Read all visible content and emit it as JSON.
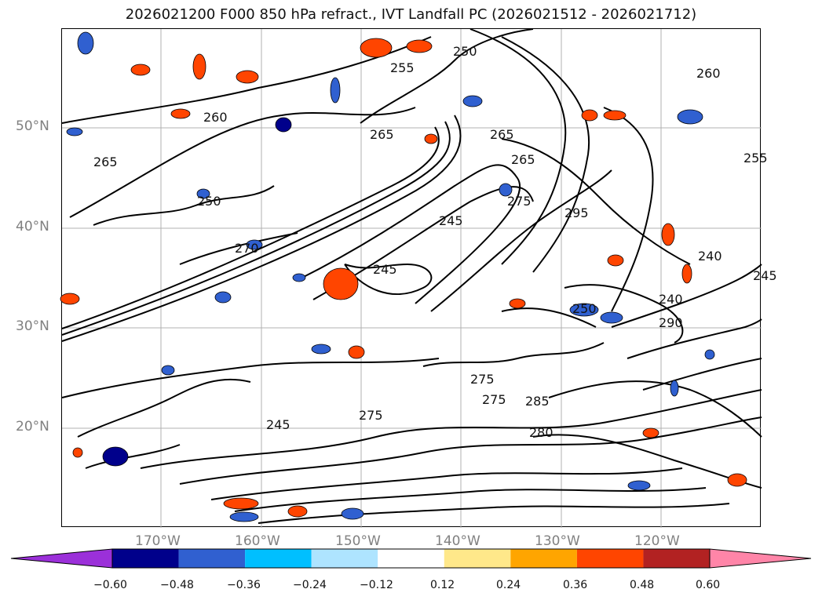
{
  "title": "2026021200 F000 850 hPa refract., IVT Landfall PC (2026021512 - 2026021712)",
  "latitudes": [
    "50°N",
    "40°N",
    "30°N",
    "20°N"
  ],
  "longitudes": [
    "170°W",
    "160°W",
    "150°W",
    "140°W",
    "130°W",
    "120°W"
  ],
  "contour_labels": [
    "250",
    "255",
    "255",
    "260",
    "260",
    "265",
    "265",
    "265",
    "265",
    "275",
    "275",
    "275",
    "275",
    "280",
    "285",
    "290",
    "295",
    "245",
    "245",
    "245",
    "245",
    "240",
    "240",
    "250",
    "250",
    "270"
  ],
  "colorbar": {
    "ticks": [
      "−0.60",
      "−0.48",
      "−0.36",
      "−0.24",
      "−0.12",
      "0.12",
      "0.24",
      "0.36",
      "0.48",
      "0.60"
    ],
    "colors": [
      "#9b30d9",
      "#00008b",
      "#3060d0",
      "#00bfff",
      "#aee4ff",
      "#ffffff",
      "#ffe88a",
      "#ffa500",
      "#ff4500",
      "#b22222",
      "#ff85a8"
    ]
  }
}
